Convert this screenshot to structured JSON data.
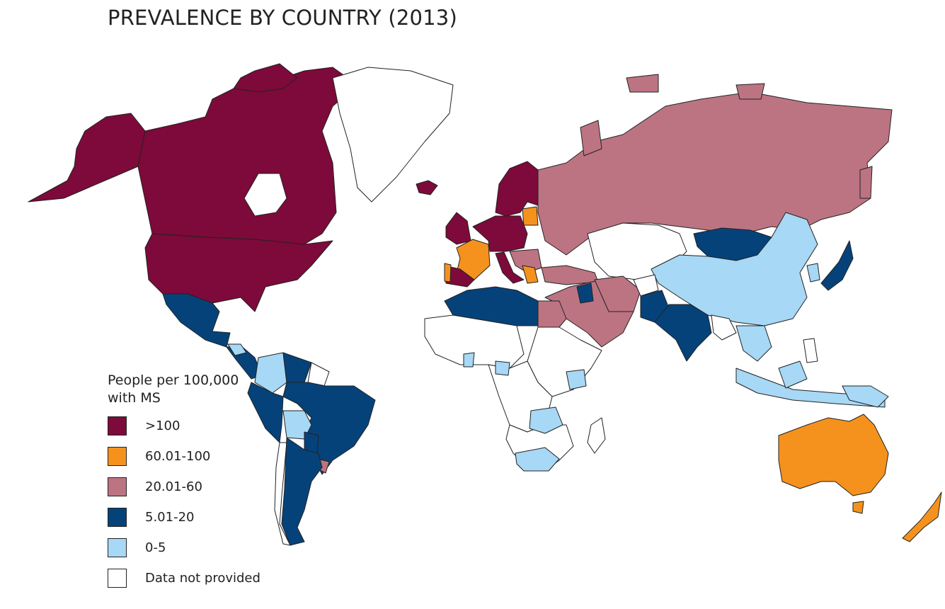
{
  "title": "PREVALENCE BY COUNTRY (2013)",
  "legend": {
    "title": "People per 100,000 with MS",
    "items": [
      {
        "label": ">100",
        "color": "#7d0a3a"
      },
      {
        "label": "60.01-100",
        "color": "#f5921e"
      },
      {
        "label": "20.01-60",
        "color": "#bc7482"
      },
      {
        "label": "5.01-20",
        "color": "#06427a"
      },
      {
        "label": "0-5",
        "color": "#a7d8f5"
      },
      {
        "label": "Data not provided",
        "color": "#ffffff"
      }
    ]
  }
}
